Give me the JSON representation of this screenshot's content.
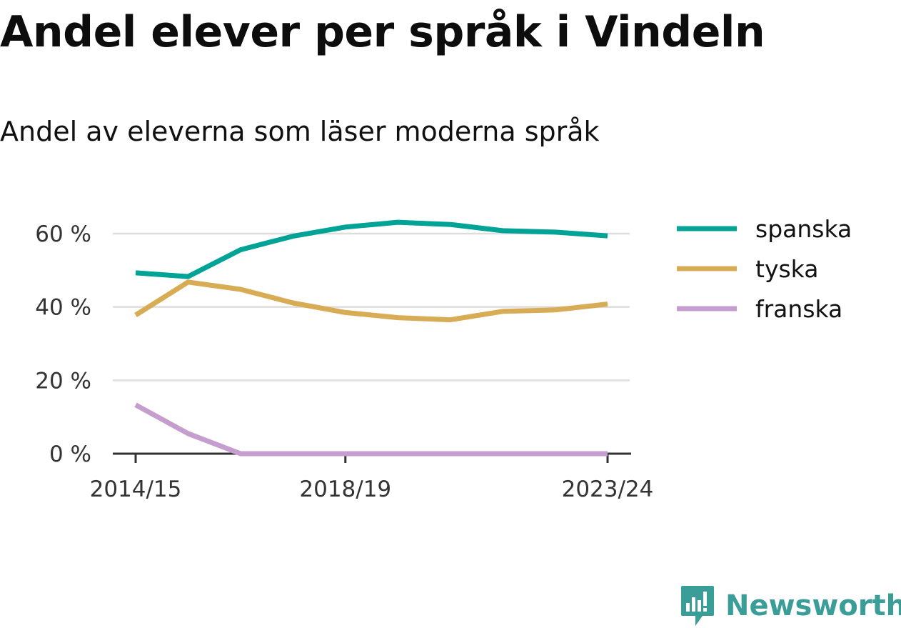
{
  "header": {
    "title": "Andel elever per språk i Vindeln",
    "subtitle": "Andel av eleverna som läser moderna språk"
  },
  "brand": {
    "name": "Newsworthy",
    "color": "#3a9d98",
    "icon": "newsworthy-logo-icon"
  },
  "chart_data": {
    "type": "line",
    "x": [
      "2014/15",
      "2015/16",
      "2016/17",
      "2017/18",
      "2018/19",
      "2019/20",
      "2020/21",
      "2021/22",
      "2022/23",
      "2023/24"
    ],
    "x_tick_labels": [
      "2014/15",
      "2018/19",
      "2023/24"
    ],
    "y_ticks": [
      0,
      20,
      40,
      60
    ],
    "y_tick_labels": [
      "0 %",
      "20 %",
      "40 %",
      "60 %"
    ],
    "ylim": [
      0,
      70
    ],
    "grid": true,
    "legend_position": "right",
    "series": [
      {
        "name": "spanska",
        "color": "#00a396",
        "values": [
          49.3,
          48.3,
          55.6,
          59.3,
          61.8,
          63.1,
          62.5,
          60.8,
          60.4,
          59.4
        ]
      },
      {
        "name": "tyska",
        "color": "#d8ac55",
        "values": [
          37.8,
          46.8,
          44.8,
          41.1,
          38.5,
          37.1,
          36.5,
          38.8,
          39.2,
          40.8
        ]
      },
      {
        "name": "franska",
        "color": "#c59dce",
        "values": [
          13.3,
          5.5,
          0,
          0,
          0,
          0,
          0,
          0,
          0,
          0
        ]
      }
    ]
  }
}
